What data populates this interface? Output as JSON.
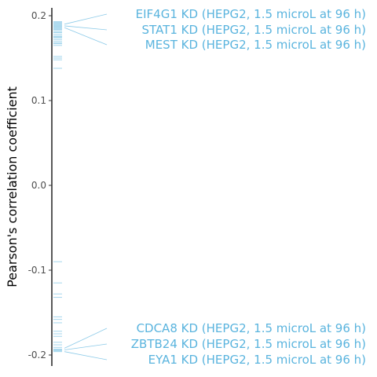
{
  "chart_data": {
    "type": "scatter",
    "title": "",
    "xlabel": "",
    "ylabel": "Pearson's correlation coefficient",
    "ylim": [
      -0.215,
      0.215
    ],
    "yticks": [
      {
        "value": 0.2,
        "label": "0.2"
      },
      {
        "value": 0.1,
        "label": "0.1"
      },
      {
        "value": 0.0,
        "label": "0.0"
      },
      {
        "value": -0.1,
        "label": "-0.1"
      },
      {
        "value": -0.2,
        "label": "-0.2"
      }
    ],
    "grid": false,
    "legend": "none",
    "color": "#5ab4de",
    "points": [
      0.193,
      0.192,
      0.191,
      0.19,
      0.189,
      0.188,
      0.187,
      0.186,
      0.185,
      0.184,
      0.183,
      0.181,
      0.18,
      0.178,
      0.176,
      0.175,
      0.174,
      0.172,
      0.17,
      0.168,
      0.167,
      0.165,
      0.152,
      0.15,
      0.148,
      0.138,
      -0.09,
      -0.115,
      -0.128,
      -0.132,
      -0.155,
      -0.158,
      -0.162,
      -0.172,
      -0.175,
      -0.178,
      -0.185,
      -0.188,
      -0.191,
      -0.193,
      -0.194,
      -0.195,
      -0.196
    ],
    "annotations": [
      {
        "label": "EIF4G1 KD (HEPG2, 1.5 microL at 96 h)",
        "value": 0.19
      },
      {
        "label": "STAT1 KD (HEPG2, 1.5 microL at 96 h)",
        "value": 0.188
      },
      {
        "label": "MEST KD (HEPG2, 1.5 microL at 96 h)",
        "value": 0.186
      },
      {
        "label": "CDCA8 KD (HEPG2, 1.5 microL at 96 h)",
        "value": -0.192
      },
      {
        "label": "ZBTB24 KD (HEPG2, 1.5 microL at 96 h)",
        "value": -0.194
      },
      {
        "label": "EYA1 KD (HEPG2, 1.5 microL at 96 h)",
        "value": -0.196
      }
    ]
  }
}
